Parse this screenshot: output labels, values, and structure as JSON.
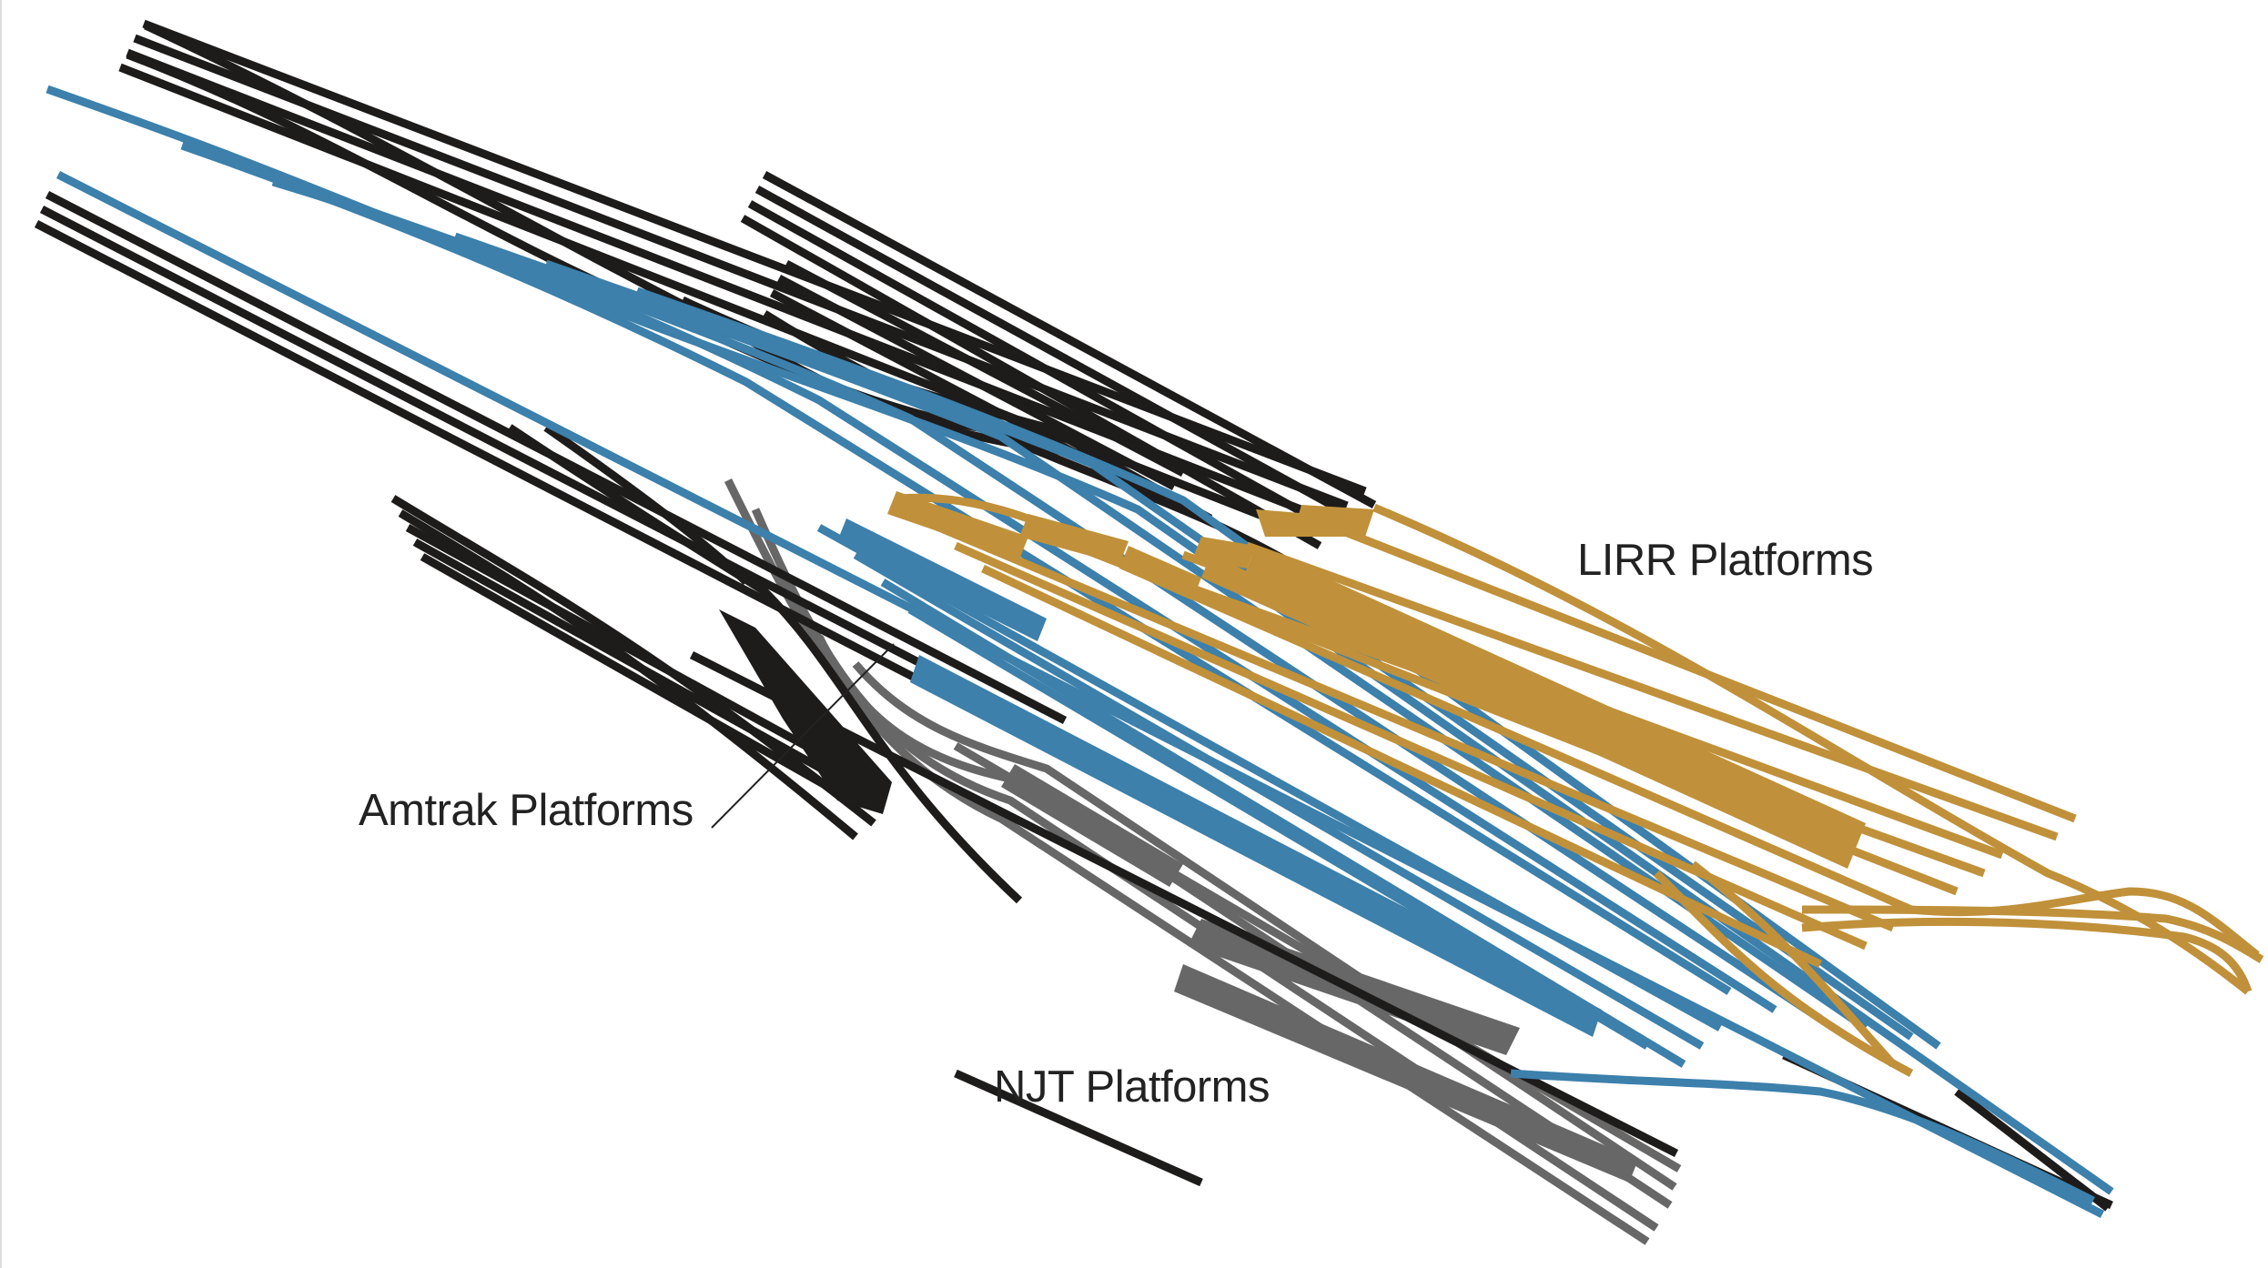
{
  "diagram": {
    "labels": {
      "lirr": "LIRR Platforms",
      "amtrak": "Amtrak Platforms",
      "njt": "NJT Platforms"
    },
    "colors": {
      "lirr": "#c0913a",
      "amtrak": "#1e1b1b",
      "njt": "#676767",
      "shared": "#3c80ab",
      "background": "#ffffff"
    }
  }
}
